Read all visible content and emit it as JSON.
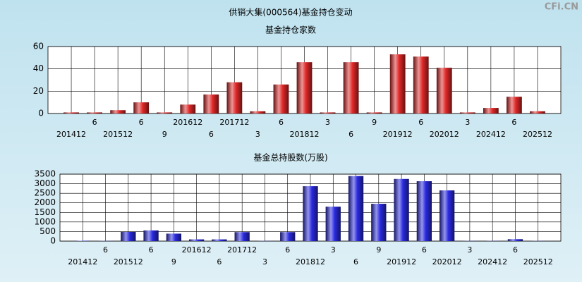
{
  "title": "供销大集(000564)基金持仓变动",
  "watermark": "CFi.CN",
  "chart_data": [
    {
      "type": "bar",
      "subtitle": "基金持仓家数",
      "color": "#e02828",
      "categories": [
        "201412",
        "6",
        "201512",
        "6",
        "9",
        "201612",
        "6",
        "201712",
        "3",
        "6",
        "201812",
        "3",
        "6",
        "9",
        "201912",
        "6",
        "202012",
        "3",
        "202412",
        "6",
        "202512"
      ],
      "values": [
        1,
        1,
        3,
        10,
        1,
        8,
        17,
        28,
        2,
        26,
        46,
        1,
        46,
        1,
        53,
        51,
        41,
        1,
        5,
        15,
        2
      ],
      "ylim": [
        0,
        60
      ],
      "yticks": [
        0,
        20,
        40,
        60
      ],
      "grid": true
    },
    {
      "type": "bar",
      "subtitle": "基金总持股数(万股)",
      "color": "#2a2ae0",
      "categories": [
        "201412",
        "6",
        "201512",
        "6",
        "9",
        "201612",
        "6",
        "201712",
        "3",
        "6",
        "201812",
        "3",
        "6",
        "9",
        "201912",
        "6",
        "202012",
        "3",
        "202412",
        "6",
        "202512"
      ],
      "values": [
        20,
        10,
        480,
        560,
        390,
        90,
        90,
        470,
        10,
        470,
        2870,
        1800,
        3400,
        1950,
        3250,
        3130,
        2650,
        10,
        10,
        100,
        10
      ],
      "ylim": [
        0,
        3500
      ],
      "yticks": [
        0,
        500,
        1000,
        1500,
        2000,
        2500,
        3000,
        3500
      ],
      "grid": true
    }
  ]
}
